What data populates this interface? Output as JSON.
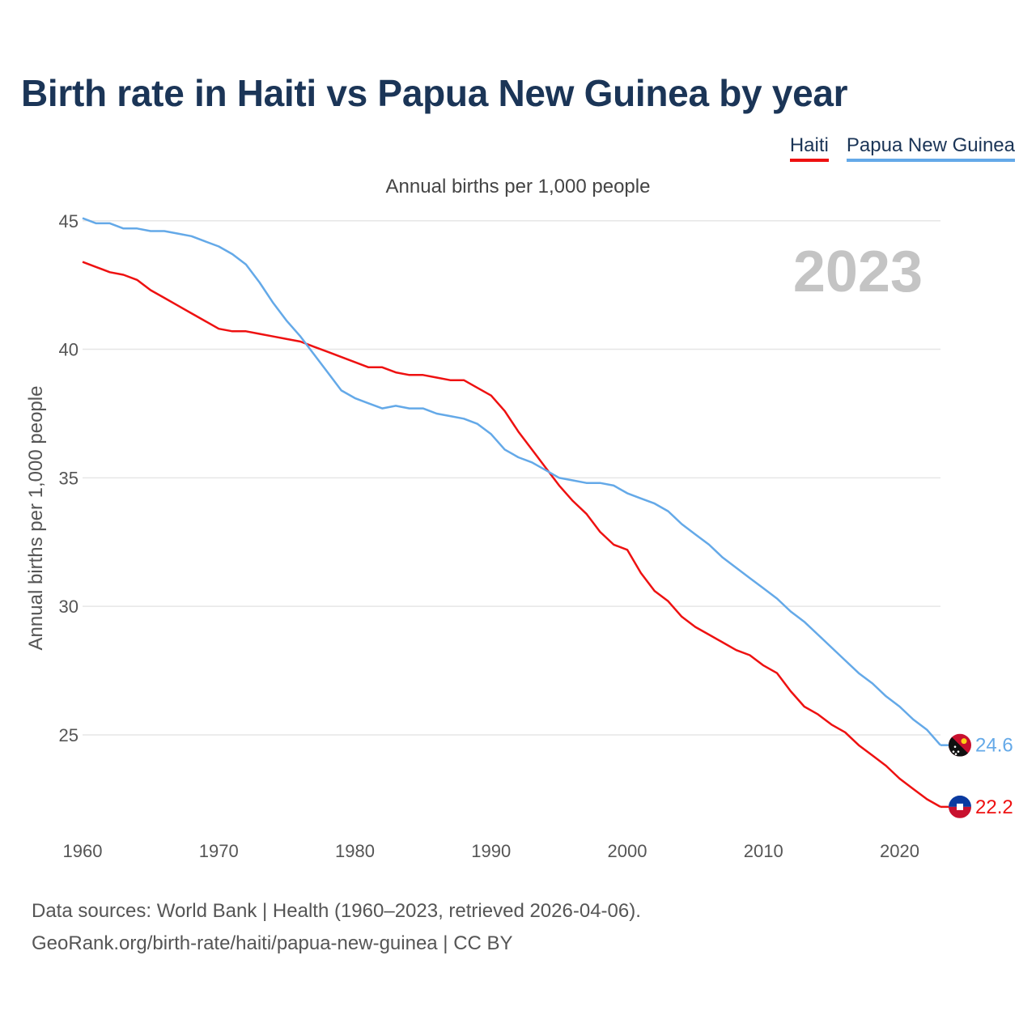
{
  "title": "Birth rate in Haiti vs Papua New Guinea by year",
  "legend": {
    "haiti": "Haiti",
    "png": "Papua New Guinea"
  },
  "subtitle": "Annual births per 1,000 people",
  "footer": {
    "line1": "Data sources: World Bank | Health (1960–2023, retrieved 2026-04-06).",
    "line2": "GeoRank.org/birth-rate/haiti/papua-new-guinea | CC BY"
  },
  "colors": {
    "haiti": "#ee1111",
    "png": "#64a9e8",
    "grid": "#e6e6e6",
    "year": "#c4c4c4",
    "axis_text": "#555555"
  },
  "chart_data": {
    "type": "line",
    "title": "Birth rate in Haiti vs Papua New Guinea by year",
    "xlabel": "",
    "ylabel": "Annual births per 1,000 people",
    "xlim": [
      1960,
      2023
    ],
    "ylim": [
      21,
      46
    ],
    "yticks": [
      25,
      30,
      35,
      40,
      45
    ],
    "xticks": [
      1960,
      1970,
      1980,
      1990,
      2000,
      2010,
      2020
    ],
    "year_label": "2023",
    "x": [
      1960,
      1961,
      1962,
      1963,
      1964,
      1965,
      1966,
      1967,
      1968,
      1969,
      1970,
      1971,
      1972,
      1973,
      1974,
      1975,
      1976,
      1977,
      1978,
      1979,
      1980,
      1981,
      1982,
      1983,
      1984,
      1985,
      1986,
      1987,
      1988,
      1989,
      1990,
      1991,
      1992,
      1993,
      1994,
      1995,
      1996,
      1997,
      1998,
      1999,
      2000,
      2001,
      2002,
      2003,
      2004,
      2005,
      2006,
      2007,
      2008,
      2009,
      2010,
      2011,
      2012,
      2013,
      2014,
      2015,
      2016,
      2017,
      2018,
      2019,
      2020,
      2021,
      2022,
      2023
    ],
    "series": [
      {
        "name": "Haiti",
        "end_label": "22.2",
        "values": [
          43.4,
          43.2,
          43.0,
          42.9,
          42.7,
          42.3,
          42.0,
          41.7,
          41.4,
          41.1,
          40.8,
          40.7,
          40.7,
          40.6,
          40.5,
          40.4,
          40.3,
          40.1,
          39.9,
          39.7,
          39.5,
          39.3,
          39.3,
          39.1,
          39.0,
          39.0,
          38.9,
          38.8,
          38.8,
          38.5,
          38.2,
          37.6,
          36.8,
          36.1,
          35.4,
          34.7,
          34.1,
          33.6,
          32.9,
          32.4,
          32.2,
          31.3,
          30.6,
          30.2,
          29.6,
          29.2,
          28.9,
          28.6,
          28.3,
          28.1,
          27.7,
          27.4,
          26.7,
          26.1,
          25.8,
          25.4,
          25.1,
          24.6,
          24.2,
          23.8,
          23.3,
          22.9,
          22.5,
          22.2
        ]
      },
      {
        "name": "Papua New Guinea",
        "end_label": "24.6",
        "values": [
          45.1,
          44.9,
          44.9,
          44.7,
          44.7,
          44.6,
          44.6,
          44.5,
          44.4,
          44.2,
          44.0,
          43.7,
          43.3,
          42.6,
          41.8,
          41.1,
          40.5,
          39.8,
          39.1,
          38.4,
          38.1,
          37.9,
          37.7,
          37.8,
          37.7,
          37.7,
          37.5,
          37.4,
          37.3,
          37.1,
          36.7,
          36.1,
          35.8,
          35.6,
          35.3,
          35.0,
          34.9,
          34.8,
          34.8,
          34.7,
          34.4,
          34.2,
          34.0,
          33.7,
          33.2,
          32.8,
          32.4,
          31.9,
          31.5,
          31.1,
          30.7,
          30.3,
          29.8,
          29.4,
          28.9,
          28.4,
          27.9,
          27.4,
          27.0,
          26.5,
          26.1,
          25.6,
          25.2,
          24.6
        ]
      }
    ]
  }
}
